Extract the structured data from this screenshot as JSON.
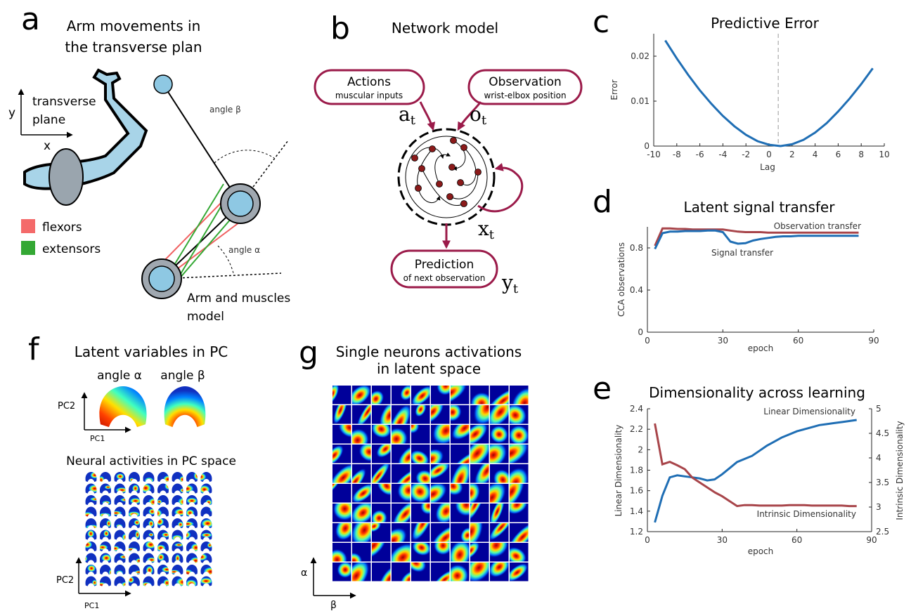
{
  "panels": {
    "a": {
      "letter": "a",
      "title": [
        "Arm movements in",
        "the transverse plan"
      ],
      "axis_y": "y",
      "axis_x": "x",
      "plane": [
        "transverse",
        "plane"
      ],
      "angle_beta": "angle β",
      "angle_alpha": "angle α",
      "legend": [
        "flexors",
        "extensors"
      ],
      "model": [
        "Arm and muscles",
        "model"
      ]
    },
    "b": {
      "letter": "b",
      "title": "Network model",
      "actions": [
        "Actions",
        "muscular inputs"
      ],
      "observation": [
        "Observation",
        "wrist-elbox position"
      ],
      "a_t": [
        "a",
        "t"
      ],
      "o_t": [
        "o",
        "t"
      ],
      "x_t": [
        "x",
        "t"
      ],
      "y_t": [
        "y",
        "t"
      ],
      "prediction": [
        "Prediction",
        "of next observation"
      ]
    },
    "f": {
      "letter": "f",
      "title": "Latent variables in PC",
      "angle_alpha": "angle α",
      "angle_beta": "angle β",
      "pc2_top": "PC2",
      "pc1_top": "PC1",
      "subtitle": "Neural activities in PC space",
      "pc2_bottom": "PC2",
      "pc1_bottom": "PC1"
    },
    "g": {
      "letter": "g",
      "title": [
        "Single neurons activations",
        "in latent space"
      ],
      "axis_alpha": "α",
      "axis_beta": "β"
    }
  },
  "chart_data": [
    {
      "type": "line",
      "panel_letter": "c",
      "title": "Predictive Error",
      "x_label": "Lag",
      "y_label": "Error",
      "x": [
        -9,
        -8,
        -7,
        -6,
        -5,
        -4,
        -3,
        -2,
        -1,
        0,
        1,
        2,
        3,
        4,
        5,
        6,
        7,
        8,
        9
      ],
      "series": [
        {
          "color": "#1f6eb4",
          "values": [
            0.0235,
            0.0195,
            0.0158,
            0.0124,
            0.0094,
            0.0067,
            0.0044,
            0.0025,
            0.0011,
            0.0003,
            0.0,
            0.0004,
            0.0014,
            0.003,
            0.0051,
            0.0077,
            0.0106,
            0.0138,
            0.0173
          ]
        }
      ],
      "xlim": [
        -10,
        10
      ],
      "xticks": [
        -10,
        -8,
        -6,
        -4,
        -2,
        0,
        2,
        4,
        6,
        8,
        10
      ],
      "ylim": [
        0,
        0.025
      ],
      "yticks": [
        0,
        0.01,
        0.02
      ],
      "vline": 0.8
    },
    {
      "type": "line",
      "panel_letter": "d",
      "title": "Latent signal transfer",
      "x_label": "epoch",
      "y_label": "CCA observations",
      "x": [
        3,
        6,
        9,
        12,
        15,
        18,
        21,
        24,
        27,
        30,
        33,
        36,
        39,
        42,
        45,
        48,
        51,
        54,
        57,
        60,
        63,
        66,
        69,
        72,
        75,
        78,
        81,
        84
      ],
      "series": [
        {
          "name": "Observation transfer",
          "color": "#a8454a",
          "values": [
            0.82,
            0.985,
            0.985,
            0.98,
            0.98,
            0.975,
            0.975,
            0.975,
            0.975,
            0.975,
            0.965,
            0.955,
            0.95,
            0.95,
            0.95,
            0.945,
            0.945,
            0.945,
            0.945,
            0.945,
            0.945,
            0.945,
            0.945,
            0.945,
            0.945,
            0.945,
            0.945,
            0.945
          ]
        },
        {
          "name": "Signal transfer",
          "color": "#1f6eb4",
          "values": [
            0.79,
            0.94,
            0.955,
            0.955,
            0.96,
            0.96,
            0.96,
            0.965,
            0.965,
            0.95,
            0.86,
            0.84,
            0.845,
            0.87,
            0.885,
            0.895,
            0.905,
            0.91,
            0.91,
            0.915,
            0.915,
            0.915,
            0.915,
            0.915,
            0.915,
            0.915,
            0.915,
            0.915
          ]
        }
      ],
      "xlim": [
        0,
        90
      ],
      "xticks": [
        0,
        30,
        60,
        90
      ],
      "ylim": [
        0,
        1
      ],
      "yticks": [
        0,
        0.4,
        0.8
      ]
    },
    {
      "type": "line",
      "panel_letter": "e",
      "title": "Dimensionality across learning",
      "x_label": "epoch",
      "y_label": "Linear Dimensionality",
      "y2_label": "Intrinsic Dimensionality",
      "x": [
        3,
        6,
        9,
        12,
        15,
        18,
        21,
        24,
        27,
        30,
        33,
        36,
        39,
        42,
        45,
        48,
        51,
        54,
        57,
        60,
        63,
        66,
        69,
        72,
        75,
        78,
        81,
        84
      ],
      "series": [
        {
          "name": "Linear Dimensionality",
          "color": "#1f6eb4",
          "values": [
            1.29,
            1.55,
            1.73,
            1.75,
            1.74,
            1.73,
            1.72,
            1.7,
            1.71,
            1.76,
            1.82,
            1.88,
            1.91,
            1.94,
            1.99,
            2.04,
            2.08,
            2.12,
            2.15,
            2.18,
            2.2,
            2.22,
            2.24,
            2.25,
            2.26,
            2.27,
            2.28,
            2.29
          ]
        },
        {
          "name": "Intrinsic Dimensionality",
          "color": "#a8454a",
          "axis": "y2",
          "values": [
            4.7,
            3.87,
            3.92,
            3.85,
            3.77,
            3.6,
            3.5,
            3.4,
            3.3,
            3.22,
            3.12,
            3.02,
            3.04,
            3.04,
            3.03,
            3.03,
            3.03,
            3.03,
            3.04,
            3.04,
            3.04,
            3.03,
            3.03,
            3.03,
            3.03,
            3.03,
            3.02,
            3.02
          ]
        }
      ],
      "xlim": [
        0,
        90
      ],
      "xticks": [
        0,
        30,
        60,
        90
      ],
      "ylim": [
        1.2,
        2.4
      ],
      "yticks": [
        1.2,
        1.4,
        1.6,
        1.8,
        2,
        2.2,
        2.4
      ],
      "y2lim": [
        2.5,
        5
      ],
      "y2ticks": [
        2.5,
        3,
        3.5,
        4,
        4.5,
        5
      ]
    }
  ]
}
